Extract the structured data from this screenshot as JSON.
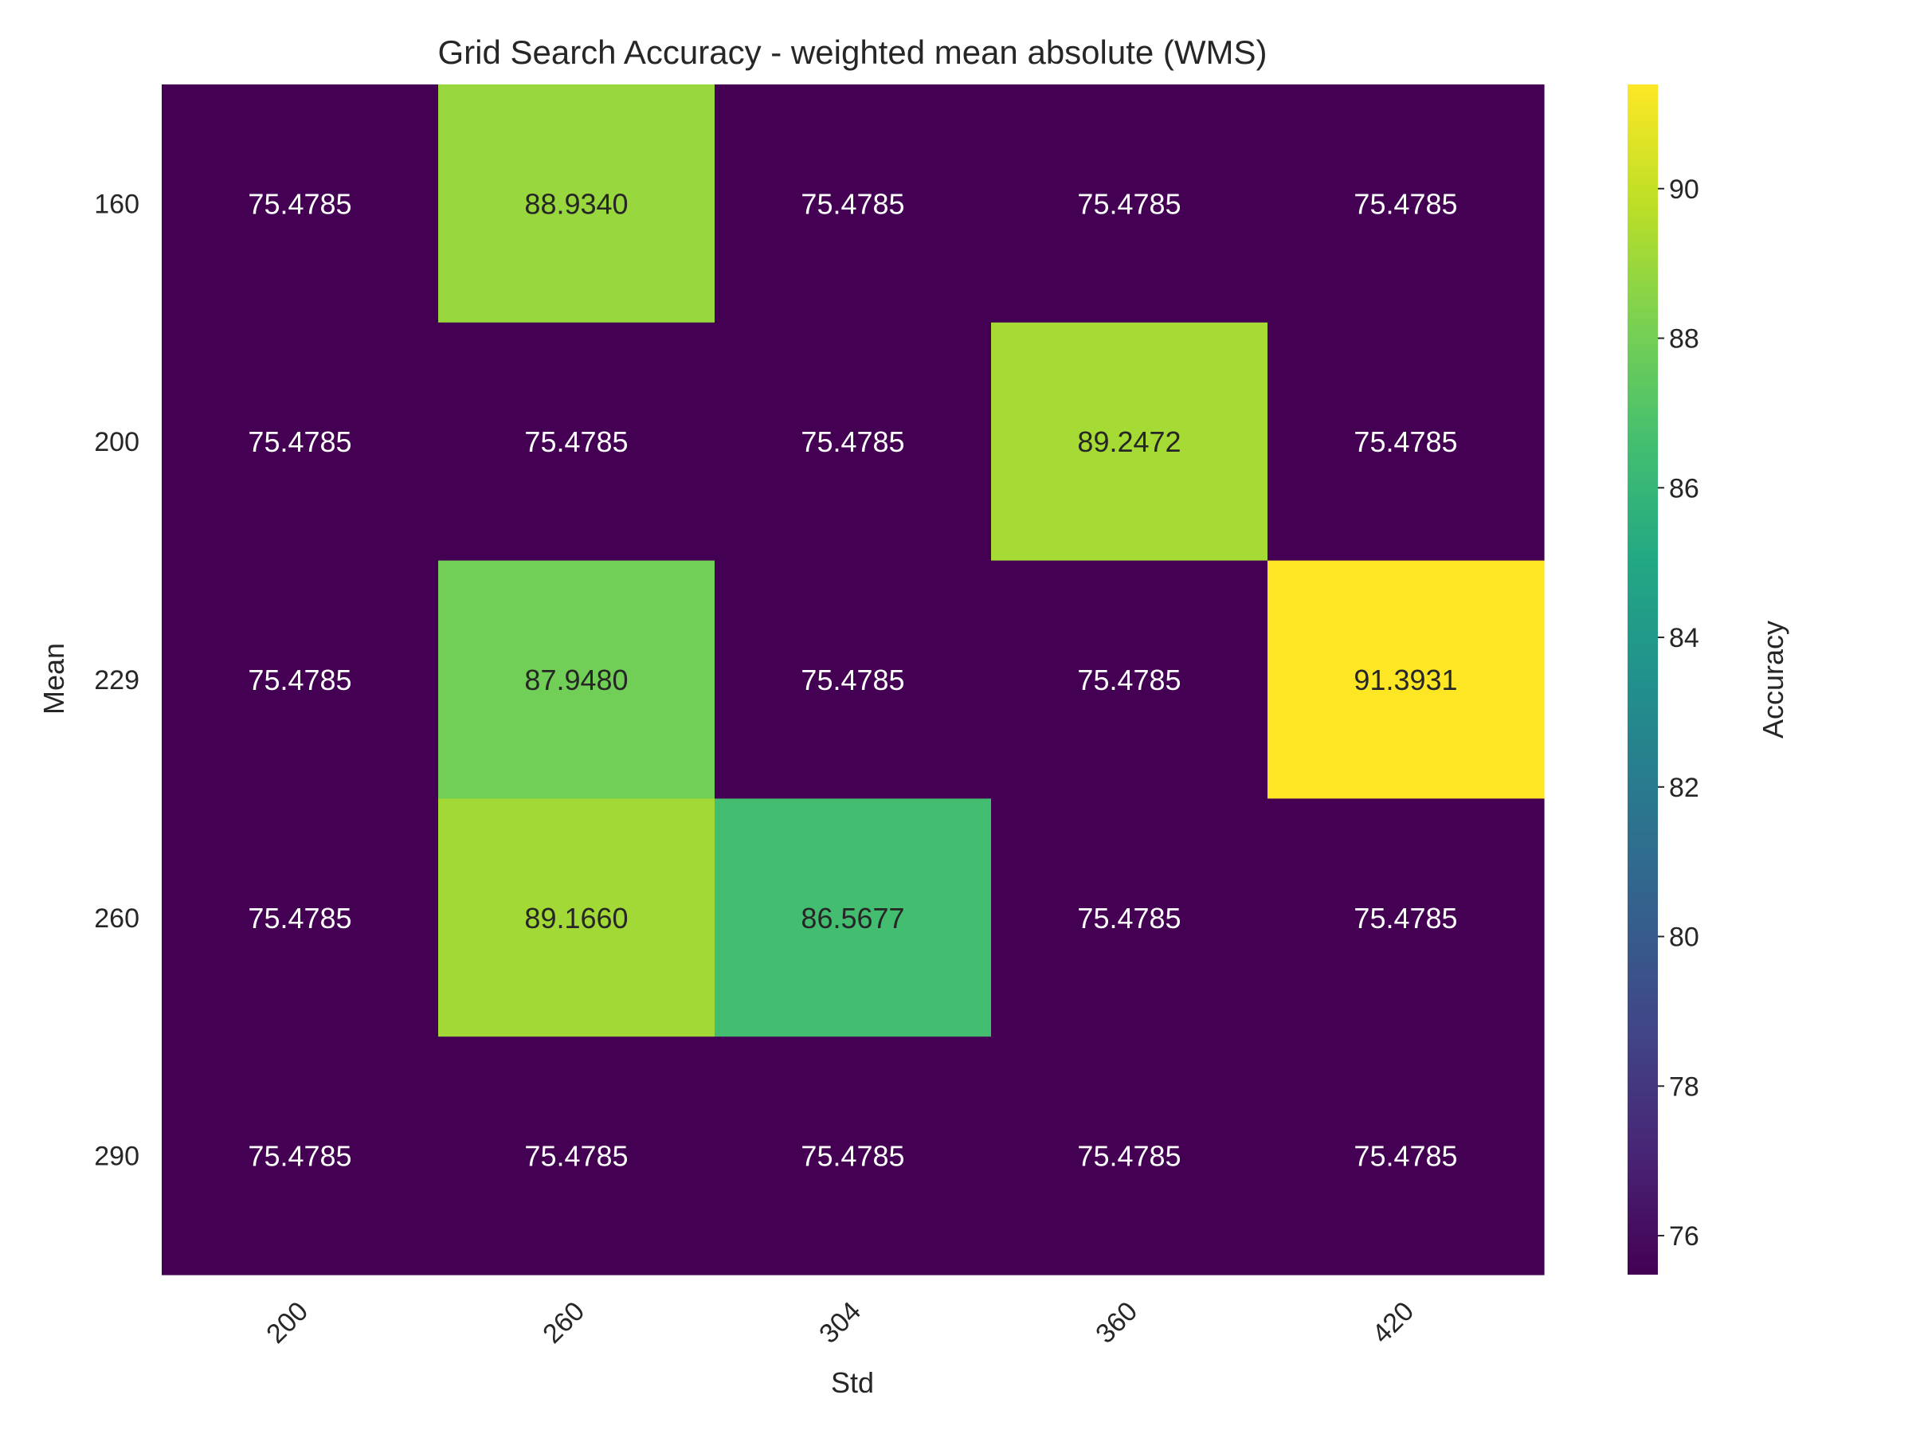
{
  "chart_data": {
    "type": "heatmap",
    "title": "Grid Search Accuracy - weighted mean absolute (WMS)",
    "xlabel": "Std",
    "ylabel": "Mean",
    "x_categories": [
      "200",
      "260",
      "304",
      "360",
      "420"
    ],
    "y_categories": [
      "160",
      "200",
      "229",
      "260",
      "290"
    ],
    "values": [
      [
        75.4785,
        88.934,
        75.4785,
        75.4785,
        75.4785
      ],
      [
        75.4785,
        75.4785,
        75.4785,
        89.2472,
        75.4785
      ],
      [
        75.4785,
        87.948,
        75.4785,
        75.4785,
        91.3931
      ],
      [
        75.4785,
        89.166,
        86.5677,
        75.4785,
        75.4785
      ],
      [
        75.4785,
        75.4785,
        75.4785,
        75.4785,
        75.4785
      ]
    ],
    "cell_labels": [
      [
        "75.4785",
        "88.9340",
        "75.4785",
        "75.4785",
        "75.4785"
      ],
      [
        "75.4785",
        "75.4785",
        "75.4785",
        "89.2472",
        "75.4785"
      ],
      [
        "75.4785",
        "87.9480",
        "75.4785",
        "75.4785",
        "91.3931"
      ],
      [
        "75.4785",
        "89.1660",
        "86.5677",
        "75.4785",
        "75.4785"
      ],
      [
        "75.4785",
        "75.4785",
        "75.4785",
        "75.4785",
        "75.4785"
      ]
    ],
    "colormap": "viridis",
    "colorbar": {
      "label": "Accuracy",
      "vmin": 75.4785,
      "vmax": 91.3931,
      "ticks": [
        "76",
        "78",
        "80",
        "82",
        "84",
        "86",
        "88",
        "90"
      ]
    },
    "x_tick_rotation": 45
  }
}
